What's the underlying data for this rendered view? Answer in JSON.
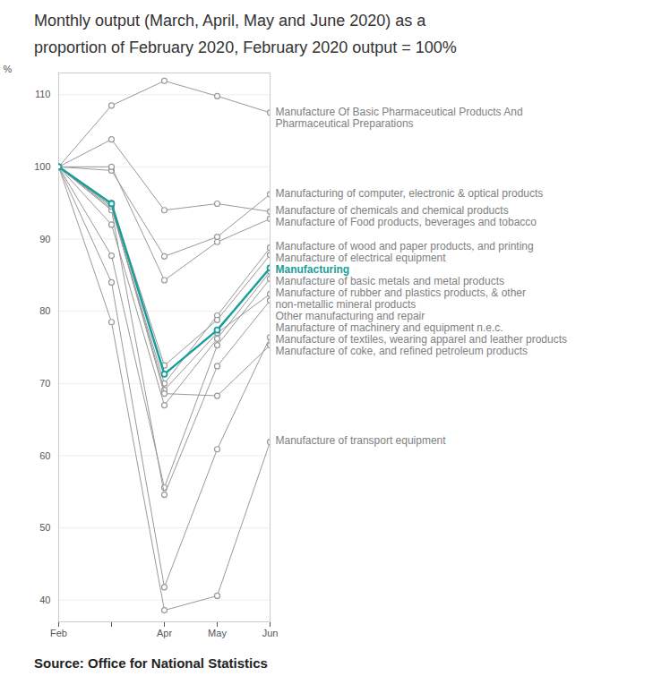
{
  "chart_data": {
    "type": "line",
    "title": "Monthly output (March, April, May and June 2020) as a proportion of February 2020, February 2020 output = 100%",
    "caption": "Source: Office for National Statistics",
    "y_label": "%",
    "categories": [
      "Feb",
      null,
      "Apr",
      "May",
      "Jun"
    ],
    "ylim": [
      37,
      113
    ],
    "yticks": [
      40,
      50,
      60,
      70,
      80,
      90,
      100,
      110
    ],
    "grid": true,
    "marker": "circle",
    "series": [
      {
        "name": "Manufacture Of Basic Pharmaceutical Products And Pharmaceutical Preparations",
        "color": "#999999",
        "values": [
          100,
          108.5,
          111.9,
          109.8,
          107.5
        ]
      },
      {
        "name": "Manufacturing of computer, electronic & optical products",
        "color": "#999999",
        "values": [
          100,
          99.5,
          87.6,
          90.3,
          96.2
        ]
      },
      {
        "name": "Manufacture of chemicals and chemical products",
        "color": "#999999",
        "values": [
          100,
          103.8,
          94.0,
          94.9,
          93.8
        ]
      },
      {
        "name": "Manufacture of Food products, beverages and tobacco",
        "color": "#999999",
        "values": [
          100,
          100.0,
          84.3,
          89.6,
          92.8
        ]
      },
      {
        "name": "Manufacture of wood and paper products, and printing",
        "color": "#999999",
        "values": [
          100,
          94.2,
          70.0,
          79.4,
          88.8
        ]
      },
      {
        "name": "Manufacture of electrical equipment",
        "color": "#999999",
        "values": [
          100,
          95.0,
          72.5,
          78.8,
          87.8
        ]
      },
      {
        "name": "Manufacturing",
        "color": "#1a9e9a",
        "line_style": "thick",
        "values": [
          100,
          94.9,
          71.3,
          77.4,
          86.0
        ]
      },
      {
        "name": "Manufacture of basic metals and metal products",
        "color": "#999999",
        "values": [
          100,
          92.0,
          67.0,
          76.2,
          85.5
        ]
      },
      {
        "name": "Manufacture of rubber and plastics products, & other non-metallic mineral products",
        "color": "#999999",
        "values": [
          100,
          87.7,
          55.6,
          75.3,
          84.5
        ]
      },
      {
        "name": "Other manufacturing and repair",
        "color": "#999999",
        "values": [
          100,
          94.5,
          69.1,
          77.0,
          82.4
        ]
      },
      {
        "name": "Manufacture of machinery and equipment n.e.c.",
        "color": "#999999",
        "values": [
          100,
          94.0,
          54.6,
          72.4,
          81.5
        ]
      },
      {
        "name": "Manufacture of textiles, wearing apparel and leather products",
        "color": "#999999",
        "values": [
          100,
          84.0,
          41.8,
          60.9,
          76.4
        ]
      },
      {
        "name": "Manufacture of coke, and refined petroleum products",
        "color": "#999999",
        "values": [
          100,
          94.5,
          68.6,
          68.3,
          75.3
        ]
      },
      {
        "name": "Manufacture of transport equipment",
        "color": "#999999",
        "values": [
          100,
          78.5,
          38.6,
          40.6,
          61.9
        ]
      }
    ]
  }
}
